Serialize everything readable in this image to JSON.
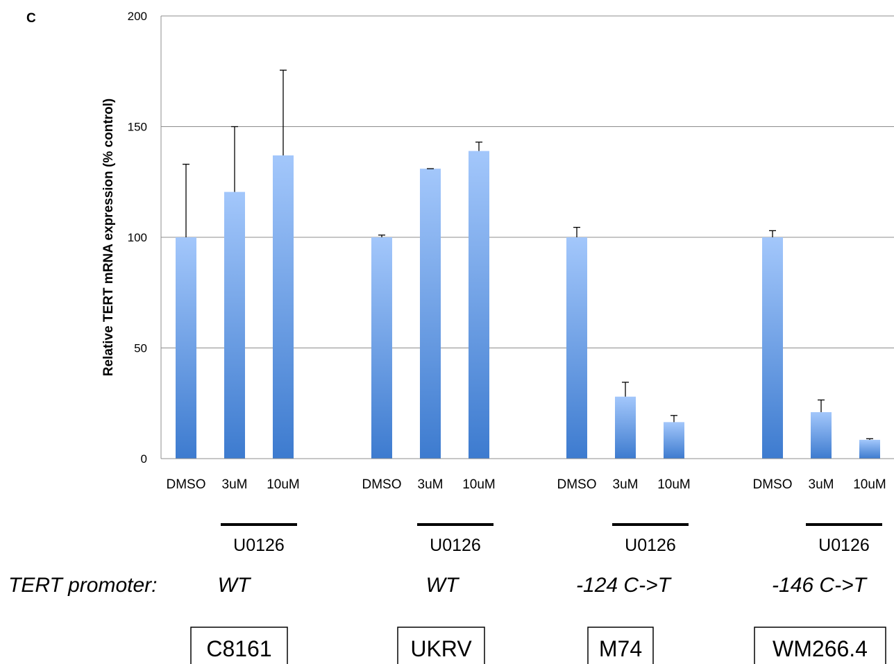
{
  "panel_label": "C",
  "chart_data": {
    "type": "bar",
    "ylabel": "Relative TERT mRNA expression (% control)",
    "ylim": [
      0,
      200
    ],
    "yticks": [
      0,
      50,
      100,
      150,
      200
    ],
    "grid": true,
    "categories": [
      "DMSO",
      "3uM",
      "10uM",
      "DMSO",
      "3uM",
      "10uM",
      "DMSO",
      "3uM",
      "10uM",
      "DMSO",
      "3uM",
      "10uM"
    ],
    "values": [
      100,
      120.5,
      137,
      100,
      131,
      139,
      100,
      28,
      16.5,
      100,
      21,
      8.5
    ],
    "errors": [
      33,
      29.5,
      38.5,
      1,
      0,
      4,
      4.5,
      6.5,
      3,
      3,
      5.5,
      0.5
    ],
    "groups": [
      {
        "drug": "U0126",
        "promoter": "WT",
        "cell_line": "C8161"
      },
      {
        "drug": "U0126",
        "promoter": "WT",
        "cell_line": "UKRV"
      },
      {
        "drug": "U0126",
        "promoter": "-124 C->T",
        "cell_line": "M74"
      },
      {
        "drug": "U0126",
        "promoter": "-146 C->T",
        "cell_line": "WM266.4"
      }
    ],
    "promoter_row_label": "TERT promoter:",
    "bar_color_top": "#a3c7fb",
    "bar_color_bottom": "#3d7bcf"
  }
}
